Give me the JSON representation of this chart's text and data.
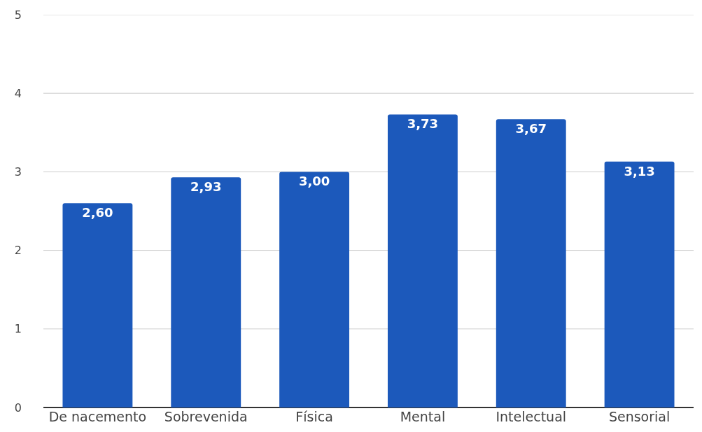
{
  "chart_data": {
    "type": "bar",
    "categories": [
      "De nacemento",
      "Sobrevenida",
      "Física",
      "Mental",
      "Intelectual",
      "Sensorial"
    ],
    "values": [
      2.6,
      2.93,
      3.0,
      3.73,
      3.67,
      3.13
    ],
    "value_labels": [
      "2,60",
      "2,93",
      "3,00",
      "3,73",
      "3,67",
      "3,13"
    ],
    "color": "#1c59bb",
    "ylim": [
      0,
      5
    ],
    "yticks": [
      0,
      1,
      2,
      3,
      4,
      5
    ],
    "grid": "y"
  }
}
